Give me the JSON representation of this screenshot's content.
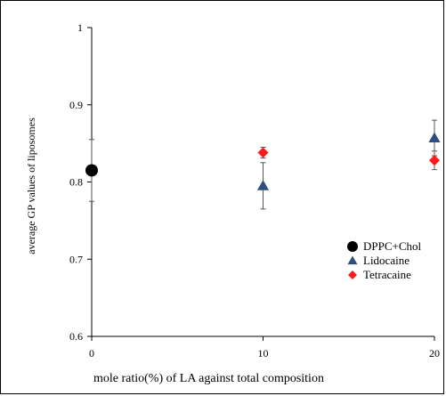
{
  "chart_data": {
    "type": "scatter",
    "xlabel": "mole ratio(%) of  LA against total composition",
    "ylabel": "average GP values of liposomes",
    "xlim": [
      0,
      20
    ],
    "ylim": [
      0.6,
      1.0
    ],
    "x_ticks": [
      "0",
      "10",
      "20"
    ],
    "y_ticks": [
      "0.6",
      "0.7",
      "0.8",
      "0.9",
      "1"
    ],
    "grid": false,
    "legend_position": "right",
    "series": [
      {
        "name": "DPPC+Chol",
        "marker": "circle",
        "color": "#000000",
        "points": [
          {
            "x": 0,
            "y": 0.815,
            "err": 0.04
          }
        ]
      },
      {
        "name": "Lidocaine",
        "marker": "triangle",
        "color": "#2f4f7f",
        "points": [
          {
            "x": 10,
            "y": 0.795,
            "err": 0.03
          },
          {
            "x": 20,
            "y": 0.857,
            "err": 0.023
          }
        ]
      },
      {
        "name": "Tetracaine",
        "marker": "diamond",
        "color": "#ff1a1a",
        "points": [
          {
            "x": 10,
            "y": 0.838,
            "err": 0.007
          },
          {
            "x": 20,
            "y": 0.828,
            "err": 0.012
          }
        ]
      }
    ]
  }
}
